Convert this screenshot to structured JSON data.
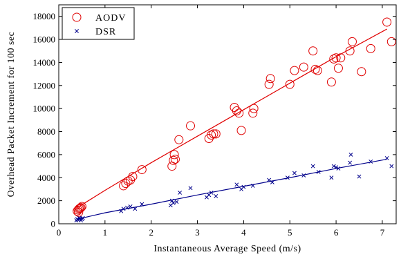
{
  "chart_data": {
    "type": "scatter",
    "title": "",
    "xlabel": "Instantaneous Average Speed (m/s)",
    "ylabel": "Overhead Packet Increment for 100 sec",
    "xlim": [
      0,
      7.3
    ],
    "ylim": [
      0,
      19000
    ],
    "xticks": [
      0,
      1,
      2,
      3,
      4,
      5,
      6,
      7
    ],
    "yticks": [
      0,
      2000,
      4000,
      6000,
      8000,
      10000,
      12000,
      14000,
      16000,
      18000
    ],
    "grid": false,
    "legend_position": "top-left",
    "series": [
      {
        "name": "AODV",
        "marker": "circle",
        "color": "#e00000",
        "x": [
          0.4,
          0.42,
          0.44,
          0.46,
          0.48,
          0.5,
          0.43,
          1.4,
          1.45,
          1.5,
          1.55,
          1.6,
          1.8,
          2.45,
          2.48,
          2.5,
          2.52,
          2.6,
          2.85,
          3.25,
          3.3,
          3.35,
          3.4,
          3.8,
          3.85,
          3.9,
          3.95,
          4.2,
          4.22,
          4.55,
          4.58,
          5.0,
          5.1,
          5.3,
          5.5,
          5.55,
          5.6,
          5.9,
          5.95,
          6.0,
          6.05,
          6.1,
          6.3,
          6.35,
          6.55,
          6.75,
          7.1,
          7.2
        ],
        "y": [
          1100,
          1200,
          1300,
          1350,
          1400,
          1500,
          1000,
          3300,
          3500,
          3700,
          3800,
          4100,
          4700,
          5000,
          5500,
          6000,
          5600,
          7300,
          8500,
          7400,
          7700,
          7800,
          7800,
          10100,
          9800,
          9600,
          8100,
          9600,
          10000,
          12100,
          12600,
          12100,
          13300,
          13600,
          15000,
          13400,
          13300,
          12300,
          14300,
          14400,
          13500,
          14400,
          15000,
          15800,
          13200,
          15200,
          17500,
          15800
        ]
      },
      {
        "name": "DSR",
        "marker": "x",
        "color": "#00008b",
        "x": [
          0.38,
          0.4,
          0.42,
          0.44,
          0.46,
          0.48,
          0.5,
          0.52,
          1.35,
          1.4,
          1.48,
          1.55,
          1.65,
          1.8,
          2.42,
          2.45,
          2.48,
          2.55,
          2.62,
          2.85,
          3.2,
          3.25,
          3.3,
          3.4,
          3.85,
          3.95,
          4.0,
          4.2,
          4.55,
          4.62,
          4.95,
          5.1,
          5.3,
          5.5,
          5.62,
          5.9,
          5.95,
          6.0,
          6.05,
          6.3,
          6.32,
          6.5,
          6.75,
          7.1,
          7.2
        ],
        "y": [
          300,
          400,
          350,
          500,
          450,
          300,
          400,
          500,
          1100,
          1300,
          1400,
          1500,
          1300,
          1700,
          1600,
          2000,
          1800,
          1900,
          2700,
          3100,
          2300,
          2500,
          2700,
          2400,
          3400,
          3000,
          3200,
          3300,
          3800,
          3600,
          4000,
          4400,
          4200,
          5000,
          4500,
          4000,
          5000,
          4900,
          4800,
          5300,
          6000,
          4100,
          5400,
          5700,
          5000
        ]
      }
    ],
    "trend_lines": [
      {
        "series": "AODV",
        "color": "#e00000",
        "x": [
          0.42,
          1.0,
          2.0,
          3.0,
          4.0,
          5.0,
          6.0,
          7.1
        ],
        "y": [
          1450,
          2900,
          5300,
          7600,
          9900,
          12200,
          14500,
          16900
        ]
      },
      {
        "series": "DSR",
        "color": "#00008b",
        "x": [
          0.42,
          1.0,
          2.0,
          3.0,
          4.0,
          5.0,
          6.0,
          7.1
        ],
        "y": [
          420,
          950,
          1700,
          2500,
          3250,
          4000,
          4800,
          5600
        ]
      }
    ]
  }
}
